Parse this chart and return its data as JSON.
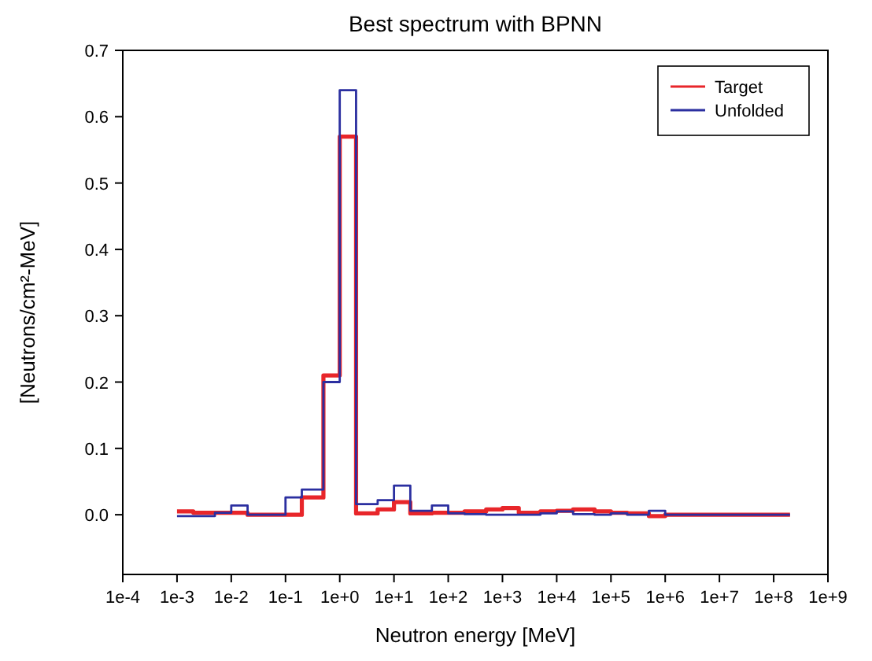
{
  "chart_data": {
    "type": "step",
    "title": "Best spectrum with BPNN",
    "xlabel": "Neutron energy [MeV]",
    "ylabel": "[Neutrons/cm²-MeV]",
    "log": "x",
    "legend": "top right",
    "grid": false,
    "xlim": [
      0.0001,
      1000000000
    ],
    "ylim": [
      -0.09,
      0.7
    ],
    "xticks": [
      {
        "value": 0.0001,
        "label": "1e-4"
      },
      {
        "value": 0.001,
        "label": "1e-3"
      },
      {
        "value": 0.01,
        "label": "1e-2"
      },
      {
        "value": 0.1,
        "label": "1e-1"
      },
      {
        "value": 1,
        "label": "1e+0"
      },
      {
        "value": 10,
        "label": "1e+1"
      },
      {
        "value": 100,
        "label": "1e+2"
      },
      {
        "value": 1000,
        "label": "1e+3"
      },
      {
        "value": 10000,
        "label": "1e+4"
      },
      {
        "value": 100000,
        "label": "1e+5"
      },
      {
        "value": 1000000,
        "label": "1e+6"
      },
      {
        "value": 10000000,
        "label": "1e+7"
      },
      {
        "value": 100000000,
        "label": "1e+8"
      },
      {
        "value": 1000000000,
        "label": "1e+9"
      }
    ],
    "yticks": [
      {
        "value": 0,
        "label": "0.0"
      },
      {
        "value": 0.1,
        "label": "0.1"
      },
      {
        "value": 0.2,
        "label": "0.2"
      },
      {
        "value": 0.3,
        "label": "0.3"
      },
      {
        "value": 0.4,
        "label": "0.4"
      },
      {
        "value": 0.5,
        "label": "0.5"
      },
      {
        "value": 0.6,
        "label": "0.6"
      },
      {
        "value": 0.7,
        "label": "0.7"
      }
    ],
    "x": [
      0.001,
      0.002,
      0.005,
      0.01,
      0.02,
      0.05,
      0.1,
      0.2,
      0.5,
      1,
      2,
      5,
      10,
      20,
      50,
      100,
      200,
      500,
      1000,
      2000,
      5000,
      10000,
      20000,
      50000,
      100000,
      200000,
      500000,
      1000000,
      200000000
    ],
    "series": [
      {
        "name": "Target",
        "color": "#e8262a",
        "values": [
          0.005,
          0.003,
          0.003,
          0.003,
          0,
          0,
          0,
          0.026,
          0.21,
          0.57,
          0.002,
          0.008,
          0.019,
          0.002,
          0.003,
          0.003,
          0.005,
          0.008,
          0.01,
          0.003,
          0.005,
          0.006,
          0.008,
          0.005,
          0.003,
          0.002,
          -0.002,
          0,
          0
        ]
      },
      {
        "name": "Unfolded",
        "color": "#2b2fa0",
        "values": [
          -0.002,
          -0.002,
          0.003,
          0.014,
          0,
          0,
          0.026,
          0.038,
          0.2,
          0.64,
          0.016,
          0.022,
          0.044,
          0.006,
          0.014,
          0.002,
          0.001,
          0,
          0,
          0,
          0.002,
          0.005,
          0.001,
          0,
          0.002,
          0,
          0.006,
          0,
          0
        ]
      }
    ]
  }
}
